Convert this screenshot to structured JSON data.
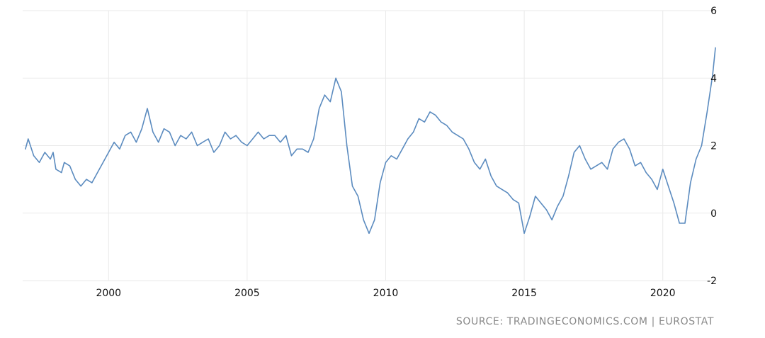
{
  "chart_data": {
    "type": "line",
    "title": "",
    "xlabel": "",
    "ylabel": "",
    "xlim": [
      1996.9,
      2021.95
    ],
    "ylim": [
      -2,
      6
    ],
    "grid": true,
    "x_ticks": [
      2000,
      2005,
      2010,
      2015,
      2020
    ],
    "x_tick_labels": [
      "2000",
      "2005",
      "2010",
      "2015",
      "2020"
    ],
    "y_ticks": [
      6,
      4,
      2,
      0,
      -2
    ],
    "y_tick_labels": [
      "6",
      "4",
      "2",
      "0",
      "-2"
    ],
    "y_axis_side": "right",
    "line_color": "#5b8bbf",
    "series": [
      {
        "x": [
          1997.0,
          1997.1,
          1997.3,
          1997.5,
          1997.7,
          1997.9,
          1998.0,
          1998.1,
          1998.3,
          1998.4,
          1998.6,
          1998.8,
          1999.0,
          1999.2,
          1999.4,
          1999.6,
          1999.8,
          2000.0,
          2000.2,
          2000.4,
          2000.6,
          2000.8,
          2001.0,
          2001.2,
          2001.4,
          2001.6,
          2001.8,
          2002.0,
          2002.2,
          2002.4,
          2002.6,
          2002.8,
          2003.0,
          2003.2,
          2003.4,
          2003.6,
          2003.8,
          2004.0,
          2004.2,
          2004.4,
          2004.6,
          2004.8,
          2005.0,
          2005.2,
          2005.4,
          2005.6,
          2005.8,
          2006.0,
          2006.2,
          2006.4,
          2006.6,
          2006.8,
          2007.0,
          2007.2,
          2007.4,
          2007.6,
          2007.8,
          2008.0,
          2008.2,
          2008.4,
          2008.6,
          2008.8,
          2009.0,
          2009.2,
          2009.4,
          2009.6,
          2009.8,
          2010.0,
          2010.2,
          2010.4,
          2010.6,
          2010.8,
          2011.0,
          2011.2,
          2011.4,
          2011.6,
          2011.8,
          2012.0,
          2012.2,
          2012.4,
          2012.6,
          2012.8,
          2013.0,
          2013.2,
          2013.4,
          2013.6,
          2013.8,
          2014.0,
          2014.2,
          2014.4,
          2014.6,
          2014.8,
          2015.0,
          2015.2,
          2015.4,
          2015.6,
          2015.8,
          2016.0,
          2016.2,
          2016.4,
          2016.6,
          2016.8,
          2017.0,
          2017.2,
          2017.4,
          2017.6,
          2017.8,
          2018.0,
          2018.2,
          2018.4,
          2018.6,
          2018.8,
          2019.0,
          2019.2,
          2019.4,
          2019.6,
          2019.8,
          2020.0,
          2020.2,
          2020.4,
          2020.6,
          2020.8,
          2021.0,
          2021.2,
          2021.4,
          2021.6,
          2021.8,
          2021.9
        ],
        "y": [
          1.9,
          2.2,
          1.7,
          1.5,
          1.8,
          1.6,
          1.8,
          1.3,
          1.2,
          1.5,
          1.4,
          1.0,
          0.8,
          1.0,
          0.9,
          1.2,
          1.5,
          1.8,
          2.1,
          1.9,
          2.3,
          2.4,
          2.1,
          2.5,
          3.1,
          2.4,
          2.1,
          2.5,
          2.4,
          2.0,
          2.3,
          2.2,
          2.4,
          2.0,
          2.1,
          2.2,
          1.8,
          2.0,
          2.4,
          2.2,
          2.3,
          2.1,
          2.0,
          2.2,
          2.4,
          2.2,
          2.3,
          2.3,
          2.1,
          2.3,
          1.7,
          1.9,
          1.9,
          1.8,
          2.2,
          3.1,
          3.5,
          3.3,
          4.0,
          3.6,
          2.0,
          0.8,
          0.5,
          -0.2,
          -0.6,
          -0.2,
          0.9,
          1.5,
          1.7,
          1.6,
          1.9,
          2.2,
          2.4,
          2.8,
          2.7,
          3.0,
          2.9,
          2.7,
          2.6,
          2.4,
          2.3,
          2.2,
          1.9,
          1.5,
          1.3,
          1.6,
          1.1,
          0.8,
          0.7,
          0.6,
          0.4,
          0.3,
          -0.6,
          -0.1,
          0.5,
          0.3,
          0.1,
          -0.2,
          0.2,
          0.5,
          1.1,
          1.8,
          2.0,
          1.6,
          1.3,
          1.4,
          1.5,
          1.3,
          1.9,
          2.1,
          2.2,
          1.9,
          1.4,
          1.5,
          1.2,
          1.0,
          0.7,
          1.3,
          0.8,
          0.3,
          -0.3,
          -0.3,
          0.9,
          1.6,
          2.0,
          3.0,
          4.1,
          4.9
        ]
      }
    ]
  },
  "source_text": "SOURCE: TRADINGECONOMICS.COM | EUROSTAT"
}
